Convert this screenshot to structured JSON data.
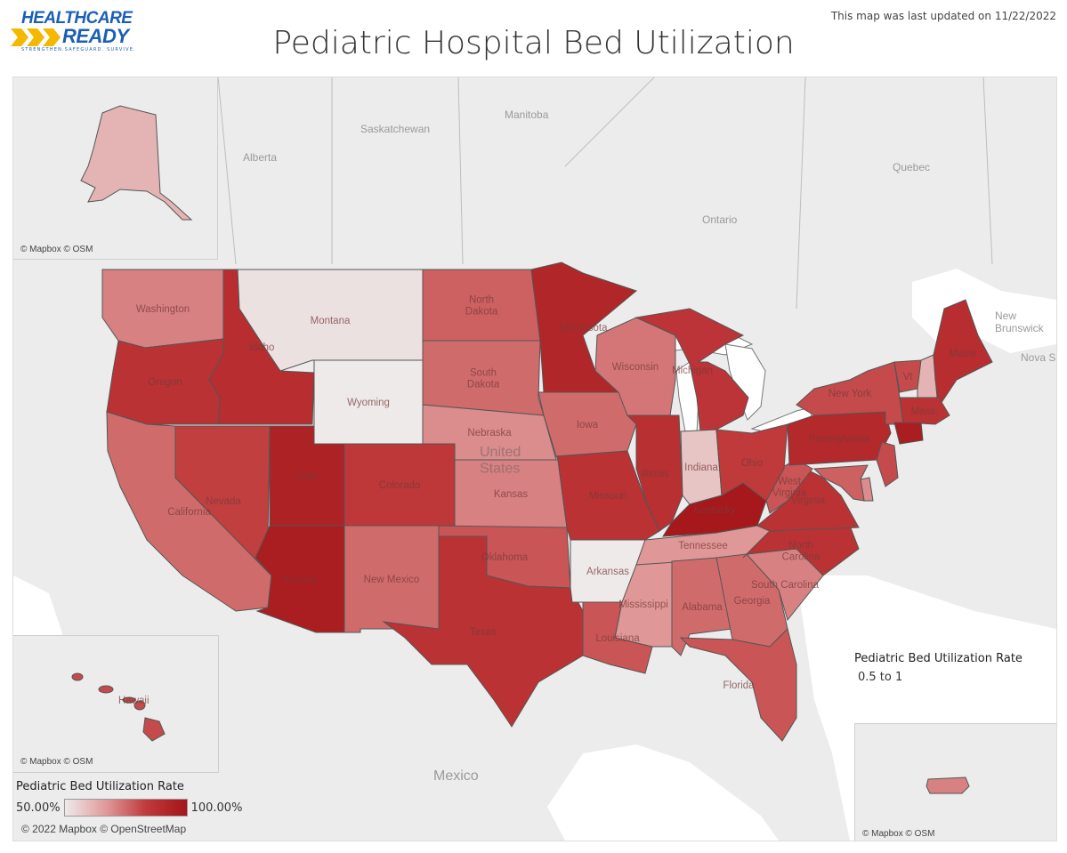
{
  "header": {
    "logo_line1": "HEALTHCARE",
    "logo_line2": "READY",
    "logo_tagline": "STRENGTHEN.SAFEGUARD. SURVIVE.",
    "last_updated": "This map was last updated on 11/22/2022",
    "title": "Pediatric Hospital Bed Utilization"
  },
  "map": {
    "regions": {
      "alberta": "Alberta",
      "saskatchewan": "Saskatchewan",
      "manitoba": "Manitoba",
      "ontario": "Ontario",
      "quebec": "Quebec",
      "new_brunswick": "New\nBrunswick",
      "nova_scotia": "Nova S",
      "mexico": "Mexico",
      "united_states": "United\nStates"
    },
    "states": [
      {
        "id": "WA",
        "label": "Washington",
        "rate": 0.72
      },
      {
        "id": "OR",
        "label": "Oregon",
        "rate": 0.88
      },
      {
        "id": "CA",
        "label": "California",
        "rate": 0.76
      },
      {
        "id": "ID",
        "label": "Idaho",
        "rate": 0.9
      },
      {
        "id": "NV",
        "label": "Nevada",
        "rate": 0.84
      },
      {
        "id": "MT",
        "label": "Montana",
        "rate": 0.52
      },
      {
        "id": "WY",
        "label": "Wyoming",
        "rate": 0.5
      },
      {
        "id": "UT",
        "label": "Utah",
        "rate": 0.95
      },
      {
        "id": "AZ",
        "label": "Arizona",
        "rate": 0.97
      },
      {
        "id": "CO",
        "label": "Colorado",
        "rate": 0.86
      },
      {
        "id": "NM",
        "label": "New Mexico",
        "rate": 0.76
      },
      {
        "id": "ND",
        "label": "North\nDakota",
        "rate": 0.78
      },
      {
        "id": "SD",
        "label": "South\nDakota",
        "rate": 0.76
      },
      {
        "id": "NE",
        "label": "Nebraska",
        "rate": 0.7
      },
      {
        "id": "KS",
        "label": "Kansas",
        "rate": 0.72
      },
      {
        "id": "OK",
        "label": "Oklahoma",
        "rate": 0.8
      },
      {
        "id": "TX",
        "label": "Texas",
        "rate": 0.88
      },
      {
        "id": "MN",
        "label": "Minnesota",
        "rate": 0.93
      },
      {
        "id": "IA",
        "label": "Iowa",
        "rate": 0.76
      },
      {
        "id": "MO",
        "label": "Missouri",
        "rate": 0.88
      },
      {
        "id": "AR",
        "label": "Arkansas",
        "rate": 0.5
      },
      {
        "id": "LA",
        "label": "Louisiana",
        "rate": 0.8
      },
      {
        "id": "WI",
        "label": "Wisconsin",
        "rate": 0.74
      },
      {
        "id": "IL",
        "label": "Illinois",
        "rate": 0.89
      },
      {
        "id": "MS",
        "label": "Mississippi",
        "rate": 0.68
      },
      {
        "id": "MI",
        "label": "Michigan",
        "rate": 0.87
      },
      {
        "id": "IN",
        "label": "Indiana",
        "rate": 0.58
      },
      {
        "id": "KY",
        "label": "Kentucky",
        "rate": 0.99
      },
      {
        "id": "TN",
        "label": "Tennessee",
        "rate": 0.68
      },
      {
        "id": "AL",
        "label": "Alabama",
        "rate": 0.76
      },
      {
        "id": "GA",
        "label": "Georgia",
        "rate": 0.76
      },
      {
        "id": "FL",
        "label": "Florida",
        "rate": 0.8
      },
      {
        "id": "SC",
        "label": "South Carolina",
        "rate": 0.72
      },
      {
        "id": "NC",
        "label": "North\nCarolina",
        "rate": 0.88
      },
      {
        "id": "VA",
        "label": "Virginia",
        "rate": 0.88
      },
      {
        "id": "WV",
        "label": "West\nVirginia",
        "rate": 0.8
      },
      {
        "id": "OH",
        "label": "Ohio",
        "rate": 0.85
      },
      {
        "id": "PA",
        "label": "Pennsylvania",
        "rate": 0.92
      },
      {
        "id": "NY",
        "label": "New York",
        "rate": 0.82
      },
      {
        "id": "VT",
        "label": "Vt",
        "rate": 0.82
      },
      {
        "id": "NH",
        "label": "",
        "rate": 0.62
      },
      {
        "id": "ME",
        "label": "Maine",
        "rate": 0.9
      },
      {
        "id": "MA",
        "label": "Mass.",
        "rate": 0.88
      },
      {
        "id": "CT",
        "label": "",
        "rate": 0.97
      },
      {
        "id": "NJ",
        "label": "",
        "rate": 0.82
      },
      {
        "id": "DE",
        "label": "",
        "rate": 0.7
      },
      {
        "id": "MD",
        "label": "",
        "rate": 0.78
      },
      {
        "id": "AK",
        "label": "",
        "rate": 0.62
      },
      {
        "id": "HI",
        "label": "Hawaii",
        "rate": 0.82
      },
      {
        "id": "PR",
        "label": "",
        "rate": 0.72
      }
    ]
  },
  "insets": {
    "alaska_attrib": "© Mapbox © OSM",
    "hawaii_attrib": "© Mapbox © OSM",
    "puerto_rico_attrib": "© Mapbox © OSM"
  },
  "legend": {
    "title": "Pediatric Bed Utilization Rate",
    "min_label": "50.00%",
    "max_label": "100.00%",
    "min_value": 0.5,
    "max_value": 1.0,
    "color_low": "#eeeaea",
    "color_high": "#a4161a"
  },
  "legend_right": {
    "title": "Pediatric Bed Utilization Rate",
    "value": "0.5 to 1"
  },
  "footer": {
    "copyright": "© 2022 Mapbox © OpenStreetMap"
  }
}
